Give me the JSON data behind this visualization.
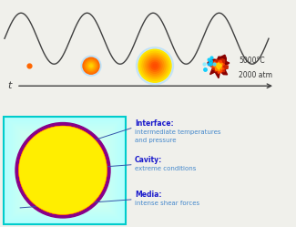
{
  "bg_color": "#f0f0eb",
  "wave_color": "#404040",
  "arrow_color": "#404040",
  "t_label": "t",
  "temp_label": "5000°C",
  "pressure_label": "2000 atm",
  "bold_color": "#1a1acc",
  "text_color": "#4488cc",
  "interface_bold": "Interface:",
  "interface_text": "intermediate temperatures\nand pressure",
  "cavity_bold": "Cavity:",
  "cavity_text": "extreme conditions",
  "media_bold": "Media:",
  "media_text": "intense shear forces"
}
